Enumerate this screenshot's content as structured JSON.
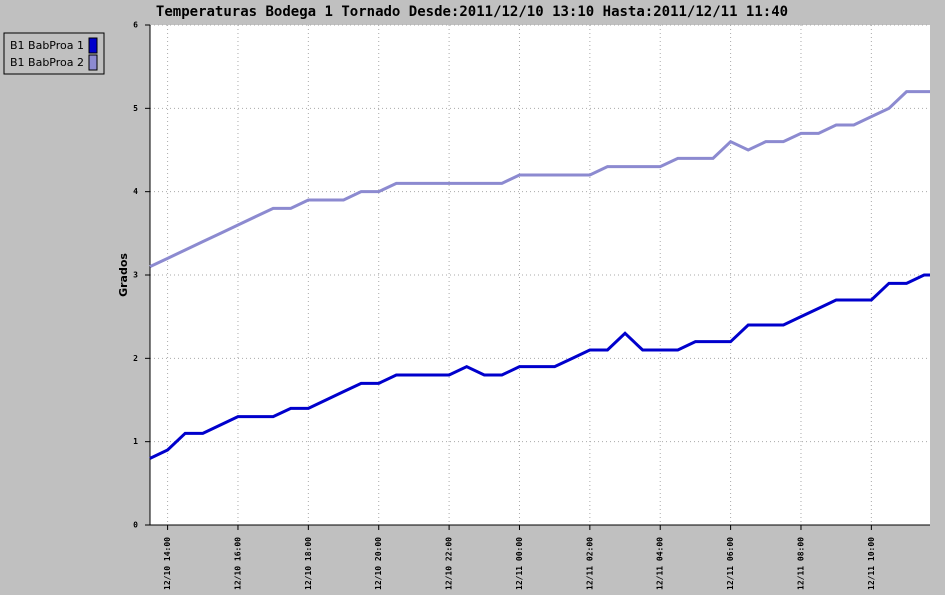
{
  "chart_data": {
    "type": "line",
    "title": "Temperaturas Bodega 1 Tornado Desde:2011/12/10 13:10 Hasta:2011/12/11 11:40",
    "y_label": "Grados",
    "x": [
      "12/10 13:30",
      "12/10 14:00",
      "12/10 14:30",
      "12/10 15:00",
      "12/10 15:30",
      "12/10 16:00",
      "12/10 16:30",
      "12/10 17:00",
      "12/10 17:30",
      "12/10 18:00",
      "12/10 18:30",
      "12/10 19:00",
      "12/10 19:30",
      "12/10 20:00",
      "12/10 20:30",
      "12/10 21:00",
      "12/10 21:30",
      "12/10 22:00",
      "12/10 22:30",
      "12/10 23:00",
      "12/10 23:30",
      "12/11 00:00",
      "12/11 00:30",
      "12/11 01:00",
      "12/11 01:30",
      "12/11 02:00",
      "12/11 02:30",
      "12/11 03:00",
      "12/11 03:30",
      "12/11 04:00",
      "12/11 04:30",
      "12/11 05:00",
      "12/11 05:30",
      "12/11 06:00",
      "12/11 06:30",
      "12/11 07:00",
      "12/11 07:30",
      "12/11 08:00",
      "12/11 08:30",
      "12/11 09:00",
      "12/11 09:30",
      "12/11 10:00",
      "12/11 10:30",
      "12/11 11:00",
      "12/11 11:30",
      "12/11 11:40"
    ],
    "series": [
      {
        "name": "B1 BabProa 1",
        "color": "#0000cc",
        "values": [
          0.8,
          0.9,
          1.1,
          1.1,
          1.2,
          1.3,
          1.3,
          1.3,
          1.4,
          1.4,
          1.5,
          1.6,
          1.7,
          1.7,
          1.8,
          1.8,
          1.8,
          1.8,
          1.9,
          1.8,
          1.8,
          1.9,
          1.9,
          1.9,
          2.0,
          2.1,
          2.1,
          2.3,
          2.1,
          2.1,
          2.1,
          2.2,
          2.2,
          2.2,
          2.4,
          2.4,
          2.4,
          2.5,
          2.6,
          2.7,
          2.7,
          2.7,
          2.9,
          2.9,
          3.0,
          3.0
        ]
      },
      {
        "name": "B1 BabProa 2",
        "color": "#8c8ad0",
        "values": [
          3.1,
          3.2,
          3.3,
          3.4,
          3.5,
          3.6,
          3.7,
          3.8,
          3.8,
          3.9,
          3.9,
          3.9,
          4.0,
          4.0,
          4.1,
          4.1,
          4.1,
          4.1,
          4.1,
          4.1,
          4.1,
          4.2,
          4.2,
          4.2,
          4.2,
          4.2,
          4.3,
          4.3,
          4.3,
          4.3,
          4.4,
          4.4,
          4.4,
          4.6,
          4.5,
          4.6,
          4.6,
          4.7,
          4.7,
          4.8,
          4.8,
          4.9,
          5.0,
          5.2,
          5.2,
          5.2
        ]
      }
    ],
    "xlim": [
      "12/10 13:30",
      "12/11 11:40"
    ],
    "xticks": [
      "12/10 14:00",
      "12/10 16:00",
      "12/10 18:00",
      "12/10 20:00",
      "12/10 22:00",
      "12/11 00:00",
      "12/11 02:00",
      "12/11 04:00",
      "12/11 06:00",
      "12/11 08:00",
      "12/11 10:00"
    ],
    "ylim": [
      0,
      6
    ],
    "yticks": [
      0,
      1,
      2,
      3,
      4,
      5,
      6
    ],
    "grid": true,
    "legend": "top-left"
  }
}
